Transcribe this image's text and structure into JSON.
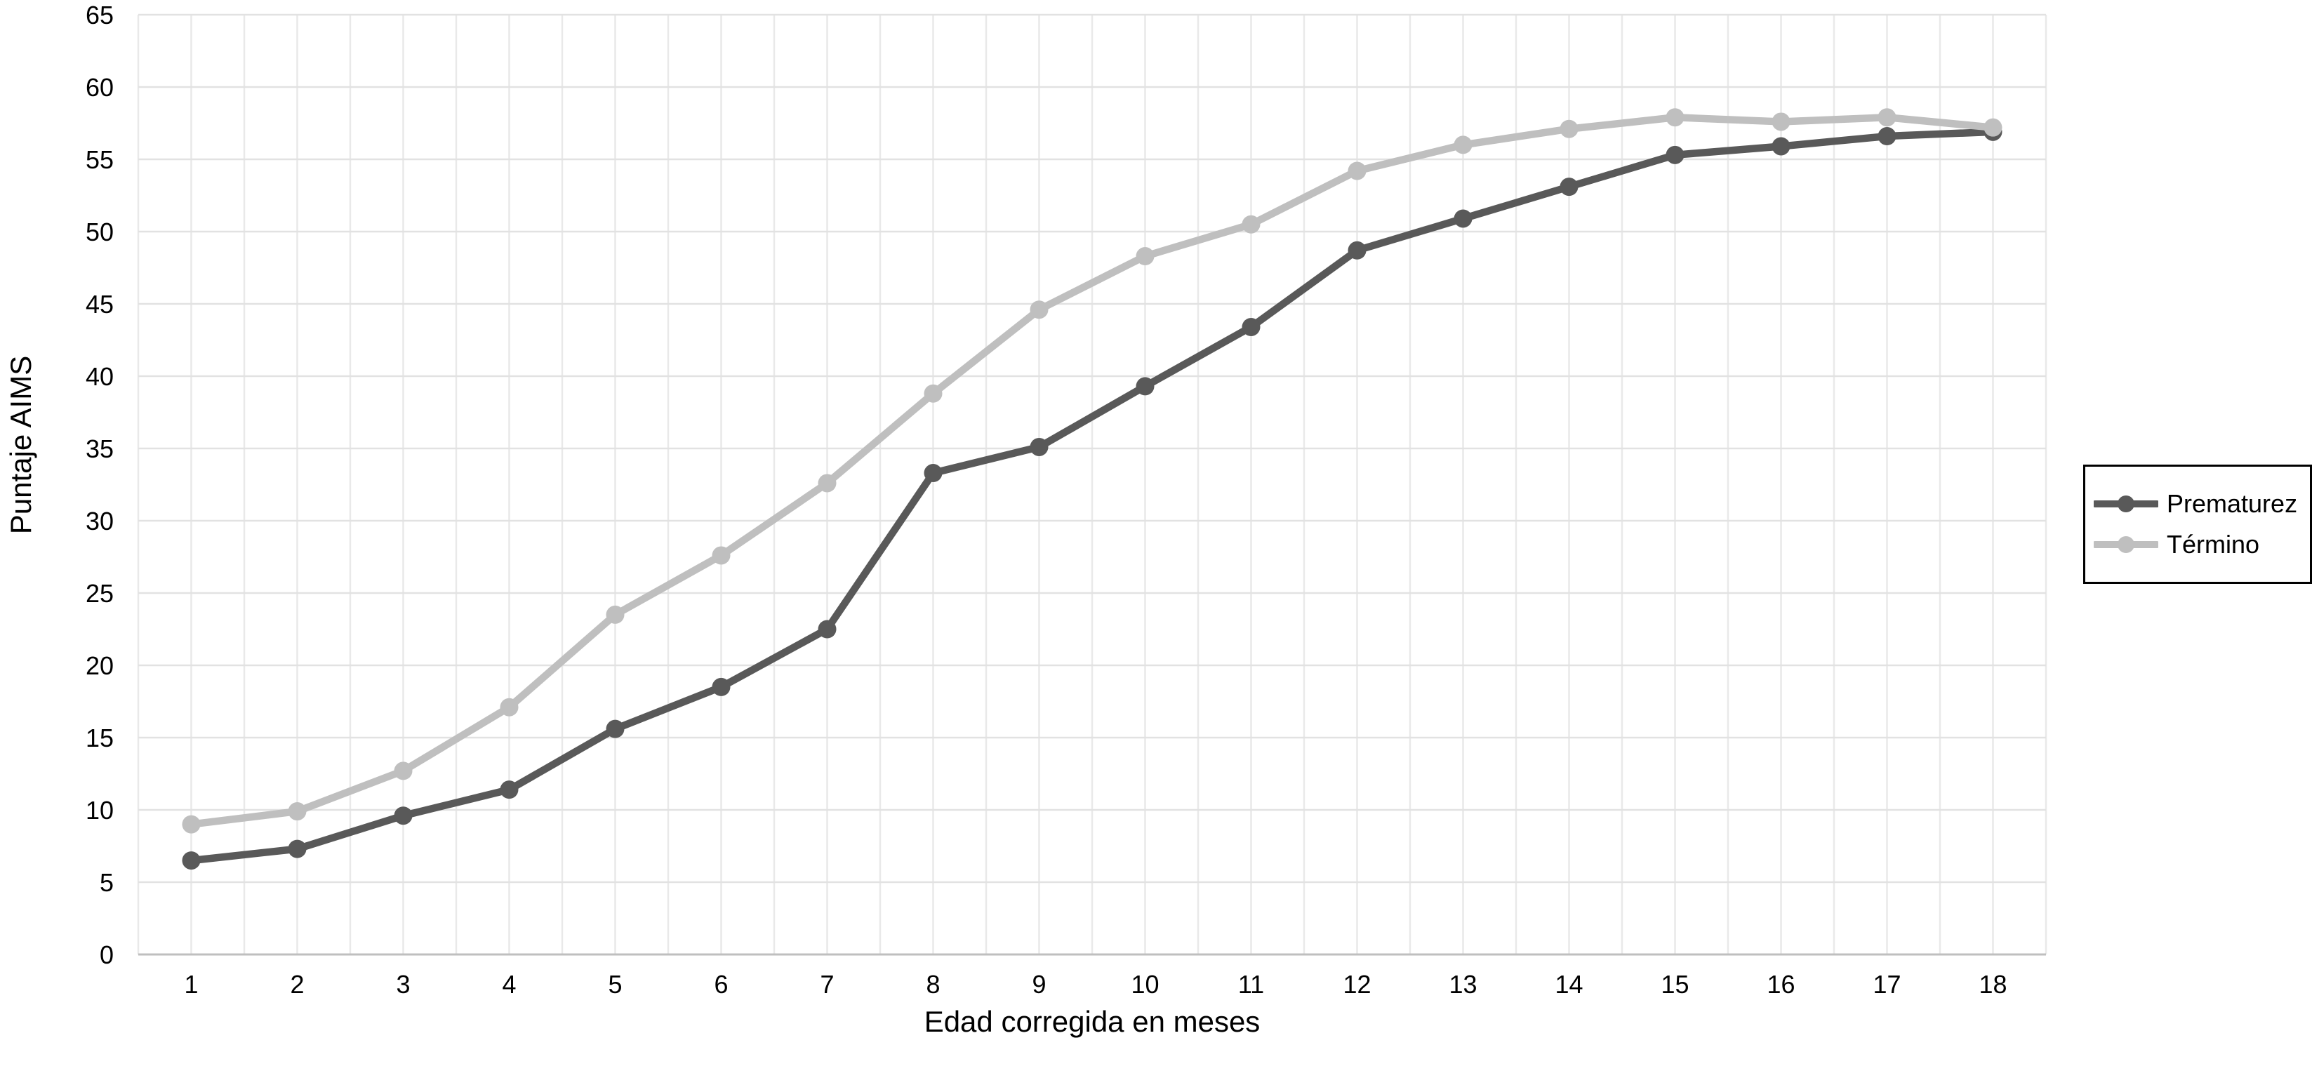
{
  "chart_data": {
    "type": "line",
    "title": "",
    "xlabel": "Edad corregida en meses",
    "ylabel": "Puntaje AIMS",
    "categories": [
      "1",
      "2",
      "3",
      "4",
      "5",
      "6",
      "7",
      "8",
      "9",
      "10",
      "11",
      "12",
      "13",
      "14",
      "15",
      "16",
      "17",
      "18"
    ],
    "series": [
      {
        "name": "Prematurez",
        "color": "#595959",
        "values": [
          6.5,
          7.3,
          9.6,
          11.4,
          15.6,
          18.5,
          22.5,
          33.3,
          35.1,
          39.3,
          43.4,
          48.7,
          50.9,
          53.1,
          55.3,
          55.9,
          56.6,
          56.9
        ]
      },
      {
        "name": "Término",
        "color": "#bfbfbf",
        "values": [
          9.0,
          9.9,
          12.7,
          17.1,
          23.5,
          27.6,
          32.6,
          38.8,
          44.6,
          48.3,
          50.5,
          54.2,
          56.0,
          57.1,
          57.9,
          57.6,
          57.9,
          57.2
        ]
      }
    ],
    "ylim": [
      0,
      65
    ],
    "ytick_step": 5,
    "grid": {
      "horizontal": true,
      "vertical": true,
      "vertical_minor": true
    },
    "legend_position": "right"
  },
  "styles": {
    "background": "#ffffff",
    "grid_color_vertical": "#e9e9e9",
    "grid_color_horizontal": "#e2e2e2",
    "axis_line_color": "#bfbfbf",
    "text_color": "#000000",
    "legend_border_color": "#000000"
  }
}
